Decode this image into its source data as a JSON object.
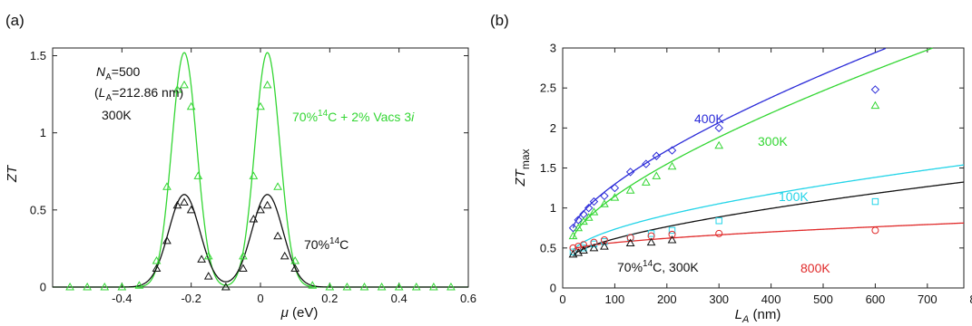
{
  "colors": {
    "green": "#33d633",
    "black": "#111111",
    "blue": "#2a2ad8",
    "cyan": "#22d4e8",
    "red": "#e02a2a"
  },
  "chart_data": [
    {
      "type": "line",
      "panel_label": "(a)",
      "xlabel_symbol": "μ",
      "xlabel_unit": " (eV)",
      "ylabel": "ZT",
      "xlim": [
        -0.6,
        0.6
      ],
      "ylim": [
        0,
        1.55
      ],
      "xticks": [
        -0.4,
        -0.2,
        0,
        0.2,
        0.4,
        0.6
      ],
      "xtick_labels": [
        "-0.4",
        "-0.2",
        "0",
        "0.2",
        "0.4",
        "0.6"
      ],
      "yticks": [
        0,
        0.5,
        1,
        1.5
      ],
      "ytick_labels": [
        "0",
        "0.5",
        "1",
        "1.5"
      ],
      "grid": false,
      "annotations": {
        "na_symbol": "N",
        "na_sub": "A",
        "na_value": "=500",
        "la_open": "(",
        "la_symbol": "L",
        "la_sub": "A",
        "la_value": "=212.86 nm)",
        "temperature": "300K"
      },
      "series": [
        {
          "name": "70%14C + 2% Vacs 3i",
          "label_pre": "70%",
          "label_sup": "14",
          "label_post": "C + 2% Vacs 3",
          "label_italic": "i",
          "color": "#33d633",
          "marker": "triangle",
          "curve": {
            "centers": [
              -0.22,
              0.02
            ],
            "peak": 1.52,
            "sigma": 0.036
          },
          "x": [
            -0.55,
            -0.5,
            -0.45,
            -0.4,
            -0.35,
            -0.3,
            -0.27,
            -0.24,
            -0.22,
            -0.2,
            -0.18,
            -0.15,
            -0.1,
            -0.05,
            -0.02,
            0.0,
            0.02,
            0.05,
            0.1,
            0.15,
            0.2,
            0.25,
            0.3,
            0.35,
            0.4,
            0.45,
            0.5,
            0.55
          ],
          "y": [
            0,
            0,
            0,
            0,
            0.01,
            0.17,
            0.65,
            1.28,
            1.31,
            1.17,
            0.72,
            0.2,
            0,
            0.2,
            0.72,
            1.17,
            1.31,
            0.65,
            0.17,
            0.01,
            0,
            0,
            0,
            0,
            0,
            0,
            0,
            0
          ]
        },
        {
          "name": "70%14C",
          "label_pre": "70%",
          "label_sup": "14",
          "label_post": "C",
          "color": "#111111",
          "marker": "triangle",
          "curve": {
            "centers": [
              -0.22,
              0.02
            ],
            "peak": 0.6,
            "sigma": 0.045
          },
          "x": [
            -0.3,
            -0.27,
            -0.24,
            -0.22,
            -0.2,
            -0.17,
            -0.15,
            -0.1,
            -0.05,
            -0.02,
            0.0,
            0.02,
            0.05,
            0.07,
            0.1
          ],
          "y": [
            0.12,
            0.3,
            0.53,
            0.55,
            0.5,
            0.18,
            0.07,
            0.0,
            0.12,
            0.44,
            0.5,
            0.53,
            0.33,
            0.2,
            0.12
          ]
        }
      ]
    },
    {
      "type": "line",
      "panel_label": "(b)",
      "xlabel_symbol": "L",
      "xlabel_sub": "A",
      "xlabel_unit": " (nm)",
      "ylabel_main": "ZT",
      "ylabel_sub": "max",
      "xlim": [
        0,
        770
      ],
      "ylim": [
        0,
        3
      ],
      "xticks": [
        0,
        100,
        200,
        300,
        400,
        500,
        600,
        700,
        800
      ],
      "xtick_labels": [
        "0",
        "100",
        "200",
        "300",
        "400",
        "500",
        "600",
        "700",
        "800"
      ],
      "yticks": [
        0,
        0.5,
        1,
        1.5,
        2,
        2.5,
        3
      ],
      "ytick_labels": [
        "0",
        "0.5",
        "1",
        "1.5",
        "2",
        "2.5",
        "3"
      ],
      "grid": false,
      "annotation": {
        "pre": "70%",
        "sup": "14",
        "post": "C, 300K"
      },
      "series": [
        {
          "name": "400K",
          "color": "#2a2ad8",
          "marker": "diamond",
          "fit": {
            "a": 0.75,
            "b": 0.0255,
            "p": 0.7
          },
          "x": [
            20,
            30,
            40,
            50,
            60,
            80,
            100,
            130,
            160,
            180,
            210,
            300,
            600
          ],
          "y": [
            0.75,
            0.85,
            0.92,
            1.0,
            1.08,
            1.15,
            1.25,
            1.45,
            1.55,
            1.65,
            1.72,
            2.0,
            2.48
          ]
        },
        {
          "name": "300K",
          "color": "#33d633",
          "marker": "triangle",
          "fit": {
            "a": 0.62,
            "b": 0.0245,
            "p": 0.7
          },
          "x": [
            20,
            30,
            40,
            50,
            60,
            80,
            100,
            130,
            160,
            180,
            210,
            300,
            600
          ],
          "y": [
            0.65,
            0.75,
            0.83,
            0.88,
            0.95,
            1.05,
            1.13,
            1.22,
            1.32,
            1.4,
            1.52,
            1.78,
            2.28
          ]
        },
        {
          "name": "100K",
          "color": "#22d4e8",
          "marker": "square",
          "fit": {
            "a": 0.45,
            "b": 0.0205,
            "p": 0.6
          },
          "x": [
            20,
            40,
            60,
            80,
            130,
            170,
            210,
            300,
            600
          ],
          "y": [
            0.45,
            0.5,
            0.55,
            0.58,
            0.63,
            0.68,
            0.72,
            0.84,
            1.08
          ]
        },
        {
          "name": "800K",
          "color": "#e02a2a",
          "marker": "circle",
          "fit": {
            "a": 0.48,
            "b": 0.00625,
            "p": 0.6
          },
          "x": [
            20,
            30,
            40,
            60,
            80,
            130,
            170,
            210,
            300,
            600
          ],
          "y": [
            0.5,
            0.52,
            0.54,
            0.57,
            0.6,
            0.63,
            0.65,
            0.67,
            0.68,
            0.72
          ]
        },
        {
          "name": "70%14C, 300K",
          "color": "#111111",
          "marker": "triangle",
          "fit": {
            "a": 0.4,
            "b": 0.0125,
            "p": 0.65
          },
          "x": [
            20,
            30,
            40,
            60,
            80,
            130,
            170,
            210
          ],
          "y": [
            0.42,
            0.44,
            0.47,
            0.5,
            0.52,
            0.56,
            0.57,
            0.6
          ]
        }
      ]
    }
  ]
}
